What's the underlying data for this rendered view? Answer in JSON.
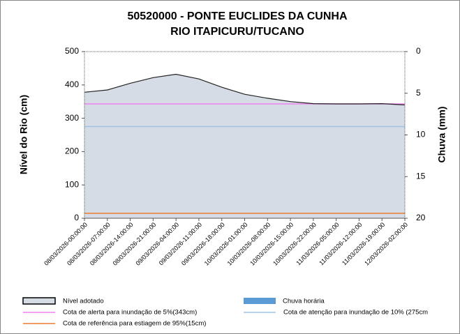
{
  "chart_data": {
    "type": "area",
    "title": "50520000 - PONTE EUCLIDES DA CUNHA",
    "subtitle": "RIO ITAPICURU/TUCANO",
    "ylabel": "Nível do Rio (cm)",
    "y2label": "Chuva (mm)",
    "categories": [
      "08/03/2026-00:00:00",
      "08/03/2026-07:00:00",
      "08/03/2026-14:00:00",
      "08/03/2026-21:00:00",
      "09/03/2026-04:00:00",
      "09/03/2026-11:00:00",
      "09/03/2026-18:00:00",
      "10/03/2026-01:00:00",
      "10/03/2026-08:00:00",
      "10/03/2026-15:00:00",
      "10/03/2026-22:00:00",
      "11/03/2026-05:00:00",
      "11/03/2026-12:00:00",
      "11/03/2026-19:00:00",
      "12/03/2026-02:00:00"
    ],
    "series": [
      {
        "name": "Nível adotado",
        "color": "#d6dce5",
        "values": [
          378,
          385,
          405,
          422,
          432,
          418,
          393,
          372,
          360,
          350,
          344,
          343,
          343,
          344,
          340
        ]
      },
      {
        "name": "Chuva horária",
        "color": "#5b9bd5",
        "axis": "y2",
        "values": [
          null,
          null,
          null,
          null,
          null,
          null,
          null,
          null,
          null,
          null,
          null,
          null,
          null,
          null,
          null
        ]
      }
    ],
    "reference_lines": [
      {
        "name": "Cota de alerta para inundação de 5%(343cm)",
        "color": "#ee82ee",
        "value": 343
      },
      {
        "name": "Cota de atenção para inundação de 10% (275cm",
        "color": "#9dc3e6",
        "value": 275
      },
      {
        "name": "Cota de referência para estiagem de 95%(15cm)",
        "color": "#ed7d31",
        "value": 15
      }
    ],
    "ylim": [
      0,
      500
    ],
    "yticks": [
      0,
      100,
      200,
      300,
      400,
      500
    ],
    "y2lim": [
      0,
      20
    ],
    "y2ticks": [
      0,
      5,
      10,
      15,
      20
    ],
    "y2_inverted": true
  }
}
